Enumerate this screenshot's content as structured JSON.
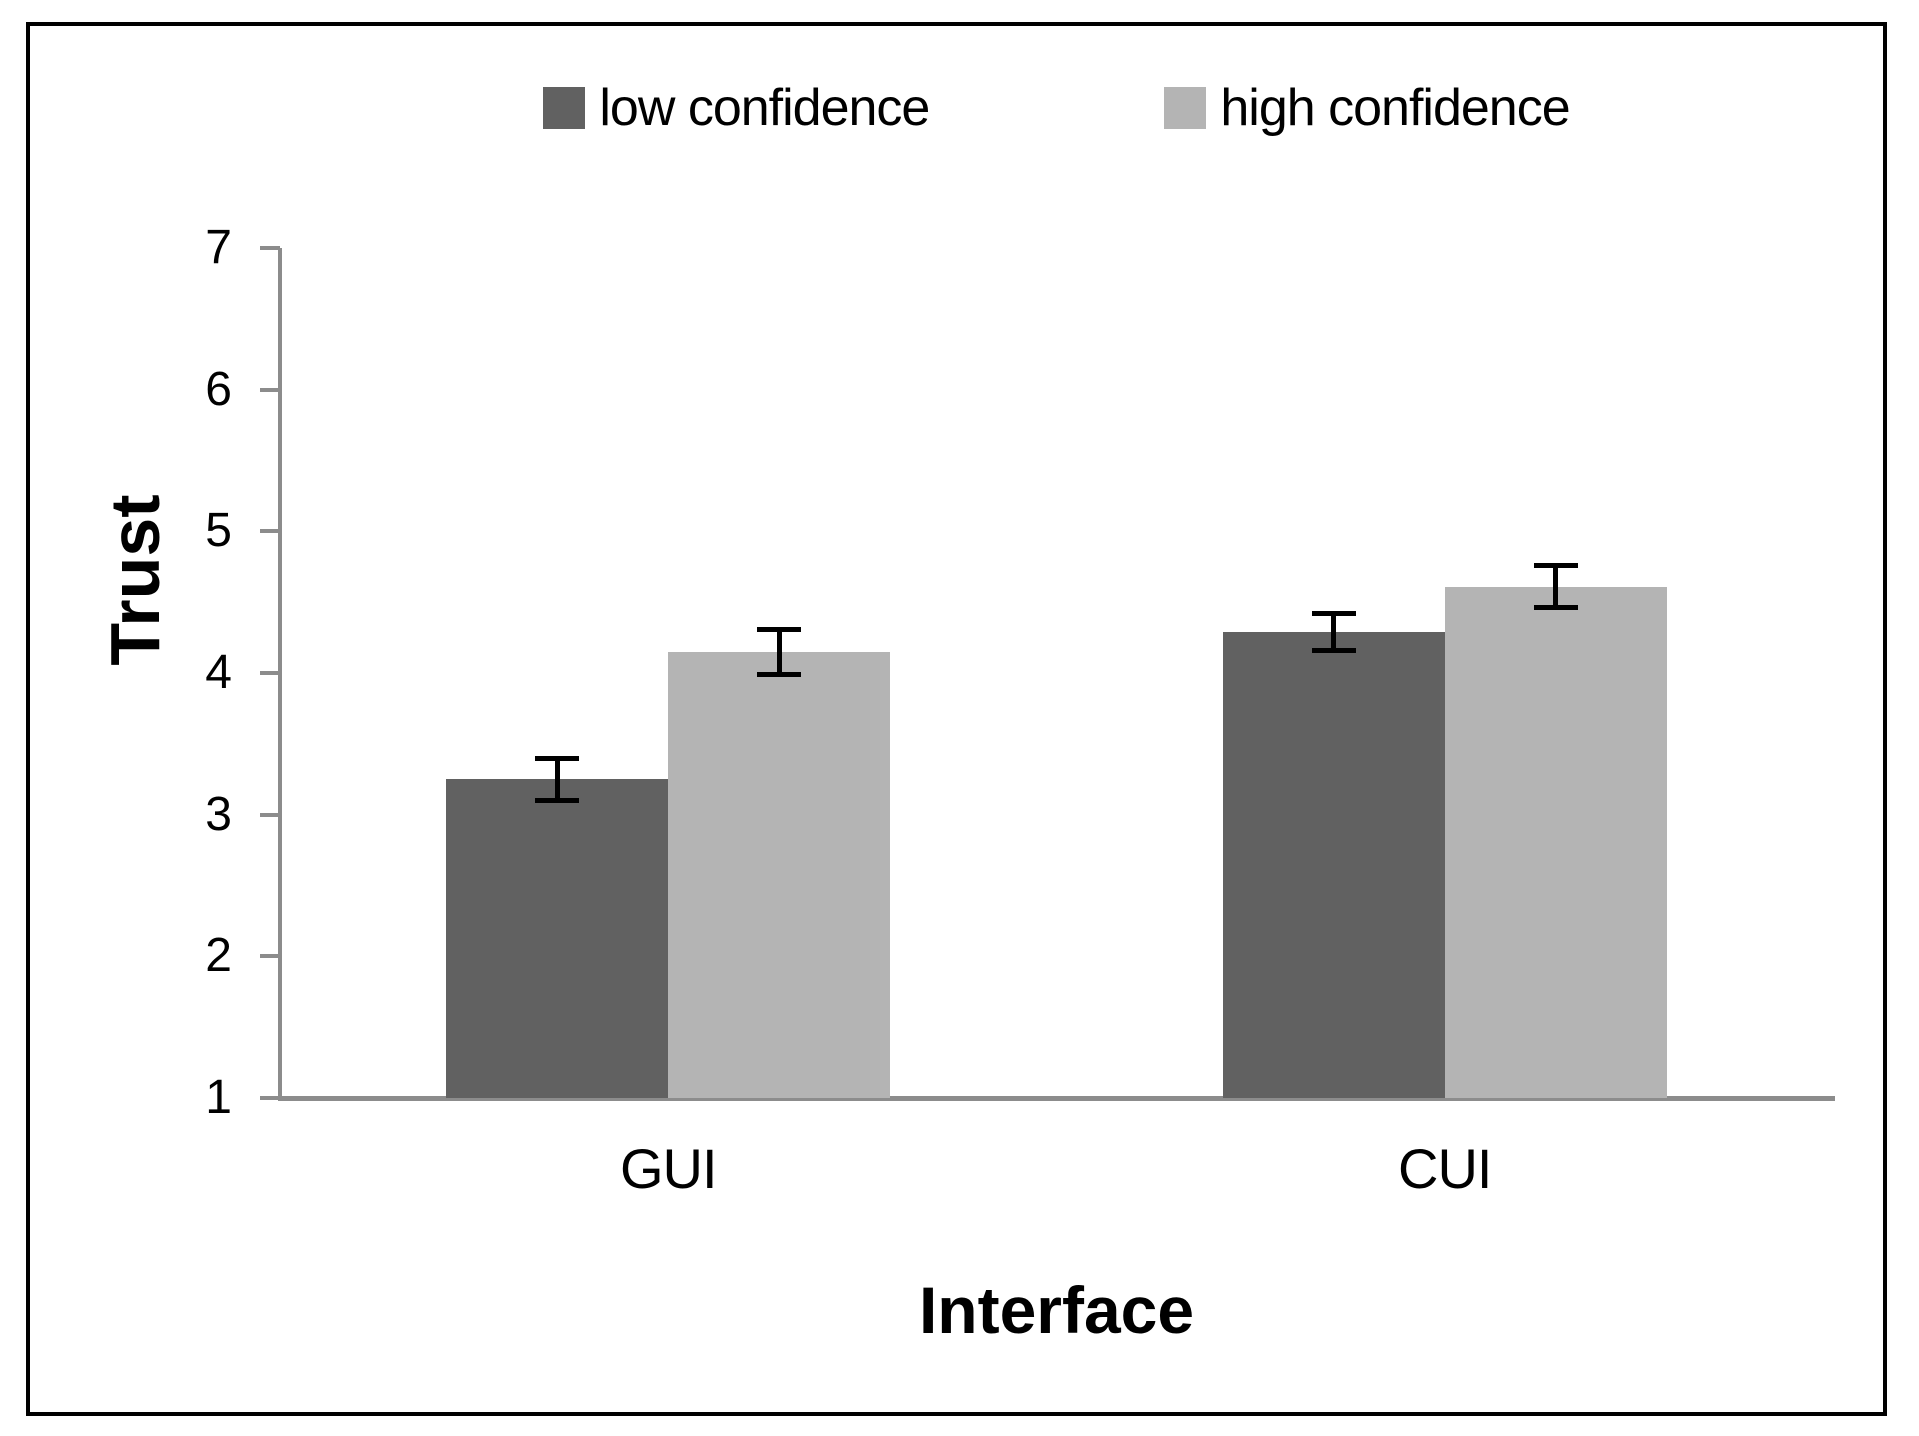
{
  "chart_data": {
    "type": "bar",
    "title": "",
    "xlabel": "Interface",
    "ylabel": "Trust",
    "categories": [
      "GUI",
      "CUI"
    ],
    "series": [
      {
        "name": "low confidence",
        "color": "#616161",
        "values": [
          3.25,
          4.29
        ],
        "errors": [
          0.15,
          0.13
        ]
      },
      {
        "name": "high confidence",
        "color": "#b4b4b4",
        "values": [
          4.15,
          4.61
        ],
        "errors": [
          0.16,
          0.15
        ]
      }
    ],
    "ylim": [
      1,
      7
    ],
    "yticks": [
      1,
      2,
      3,
      4,
      5,
      6,
      7
    ],
    "grid": false,
    "legend_position": "top",
    "error_bars": true
  },
  "colors": {
    "axis": "#8c8c8c",
    "text": "#000000",
    "background": "#ffffff",
    "border": "#000000",
    "series_low": "#616161",
    "series_high": "#b4b4b4"
  }
}
